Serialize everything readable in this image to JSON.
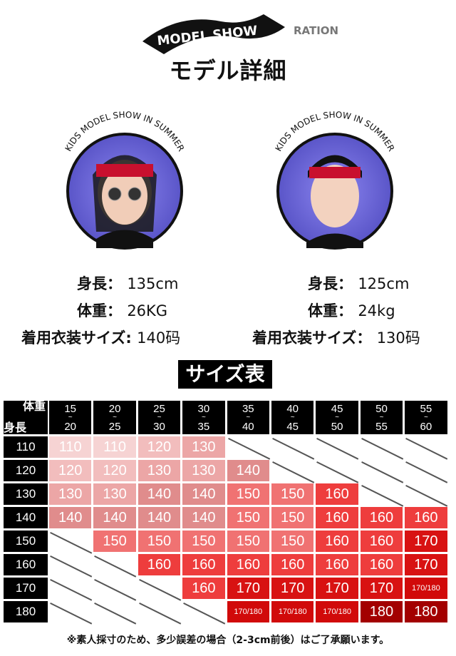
{
  "header": {
    "logo_text": "MODEL SHOW",
    "logo_echo_text": "RATION",
    "title": "モデル詳細"
  },
  "models": [
    {
      "ring_text": "KIDS MODEL SHOW IN SUMMER",
      "height_label": "身長",
      "height": "135cm",
      "weight_label": "体重",
      "weight": "26KG",
      "size_label": "着用衣装サイズ",
      "size": "140码"
    },
    {
      "ring_text": "KIDS MODEL SHOW IN SUMMER",
      "height_label": "身長",
      "height": "125cm",
      "weight_label": "体重",
      "weight": "24kg",
      "size_label": "着用衣装サイズ",
      "size": "130码"
    }
  ],
  "size_chart": {
    "title": "サイズ表",
    "corner_top": "体重",
    "corner_bottom": "身長",
    "weight_columns": [
      [
        "15",
        "20"
      ],
      [
        "20",
        "25"
      ],
      [
        "25",
        "30"
      ],
      [
        "30",
        "35"
      ],
      [
        "35",
        "40"
      ],
      [
        "40",
        "45"
      ],
      [
        "45",
        "50"
      ],
      [
        "50",
        "55"
      ],
      [
        "55",
        "60"
      ]
    ],
    "rows": [
      {
        "height": "110",
        "values": [
          "110",
          "110",
          "120",
          "130",
          null,
          null,
          null,
          null,
          null
        ]
      },
      {
        "height": "120",
        "values": [
          "120",
          "120",
          "130",
          "130",
          "140",
          null,
          null,
          null,
          null
        ]
      },
      {
        "height": "130",
        "values": [
          "130",
          "130",
          "140",
          "140",
          "150",
          "150",
          "160",
          null,
          null
        ]
      },
      {
        "height": "140",
        "values": [
          "140",
          "140",
          "140",
          "140",
          "150",
          "150",
          "160",
          "160",
          "160"
        ]
      },
      {
        "height": "150",
        "values": [
          null,
          "150",
          "150",
          "150",
          "150",
          "150",
          "160",
          "160",
          "170"
        ]
      },
      {
        "height": "160",
        "values": [
          null,
          null,
          "160",
          "160",
          "160",
          "160",
          "160",
          "160",
          "170"
        ]
      },
      {
        "height": "170",
        "values": [
          null,
          null,
          null,
          "160",
          "170",
          "170",
          "170",
          "170",
          "170/180"
        ]
      },
      {
        "height": "180",
        "values": [
          null,
          null,
          null,
          null,
          "170/180",
          "170/180",
          "170/180",
          "180",
          "180"
        ]
      }
    ],
    "value_colors": {
      "110": "#f6d3d3",
      "120": "#f2bdbd",
      "130": "#eca6a6",
      "140": "#e08c8c",
      "150": "#f07272",
      "160": "#ee3d3d",
      "170": "#d81212",
      "170/180": "#d10a0a",
      "180": "#a30000"
    },
    "footnote": "※素人採寸のため、多少誤差の場合（2-3cm前後）はご了承願います。"
  }
}
